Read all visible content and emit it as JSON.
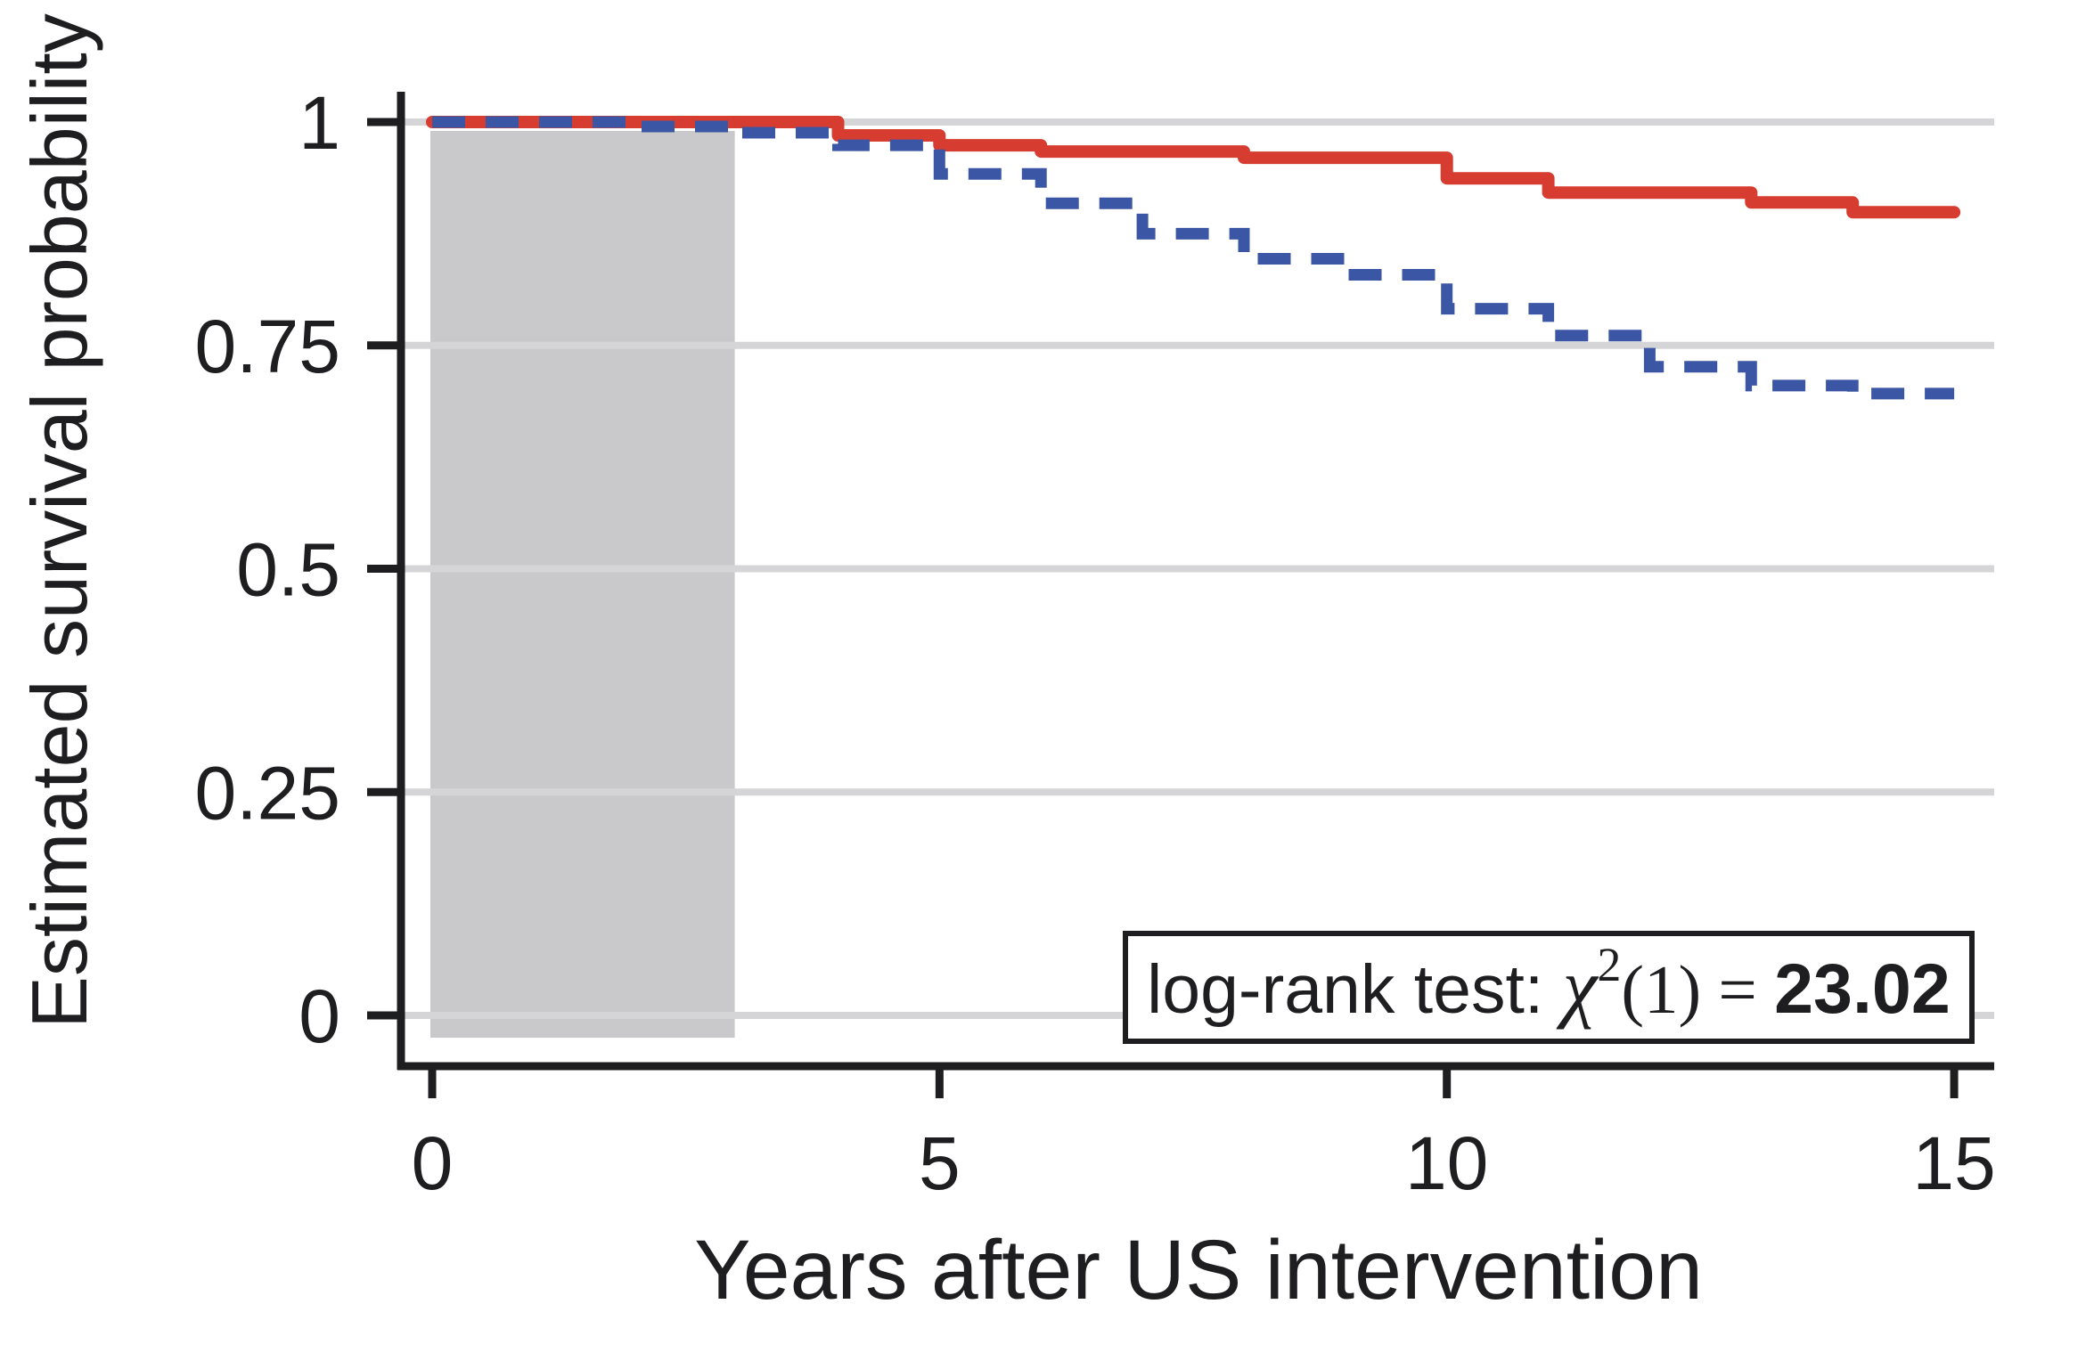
{
  "figure": {
    "background_color": "#ffffff",
    "axis_color": "#1e1e20",
    "gridline_color": "#d5d5d7"
  },
  "annotation_box": {
    "prefix": "log-rank test: ",
    "chi": "χ",
    "sup": "2",
    "paren": "(1)",
    "equals": " = ",
    "value": "23.02",
    "full_text": "log-rank test: χ²(1) = 23.02"
  },
  "chart_data": {
    "type": "line",
    "subtype": "step-survival",
    "title": "",
    "xlabel": "Years after US intervention",
    "ylabel": "Estimated survival probability",
    "xlim": [
      0,
      15
    ],
    "ylim": [
      0,
      1
    ],
    "grid": true,
    "legend_position": "none",
    "x_ticks": {
      "values": [
        0,
        5,
        10,
        15
      ],
      "labels": [
        "0",
        "5",
        "10",
        "15"
      ]
    },
    "y_ticks": {
      "values": [
        0,
        0.25,
        0.5,
        0.75,
        1
      ],
      "labels": [
        "0",
        "0.25",
        "0.5",
        "0.75",
        "1"
      ]
    },
    "shaded_region": {
      "x_start": 0,
      "x_end": 3,
      "y_bottom": -0.025,
      "y_top": 0.99,
      "color": "#c9c9cb"
    },
    "annotation": "log-rank test: χ²(1) = 23.02",
    "series": [
      {
        "name": "red-solid-survival-curve",
        "color": "#d63c30",
        "line_style": "solid",
        "end_x": 15,
        "steps": [
          [
            0,
            1.0
          ],
          [
            4,
            0.985
          ],
          [
            5,
            0.974
          ],
          [
            6,
            0.967
          ],
          [
            8,
            0.96
          ],
          [
            10,
            0.937
          ],
          [
            11,
            0.921
          ],
          [
            13,
            0.91
          ],
          [
            14,
            0.899
          ]
        ]
      },
      {
        "name": "blue-dashed-survival-curve",
        "color": "#3c56a6",
        "line_style": "dashed",
        "end_x": 15,
        "steps": [
          [
            0,
            1.0
          ],
          [
            2,
            0.995
          ],
          [
            3,
            0.988
          ],
          [
            4,
            0.974
          ],
          [
            5,
            0.942
          ],
          [
            6,
            0.909
          ],
          [
            7,
            0.875
          ],
          [
            8,
            0.847
          ],
          [
            9,
            0.829
          ],
          [
            10,
            0.791
          ],
          [
            11,
            0.761
          ],
          [
            12,
            0.726
          ],
          [
            13,
            0.705
          ],
          [
            14,
            0.696
          ]
        ]
      }
    ]
  }
}
